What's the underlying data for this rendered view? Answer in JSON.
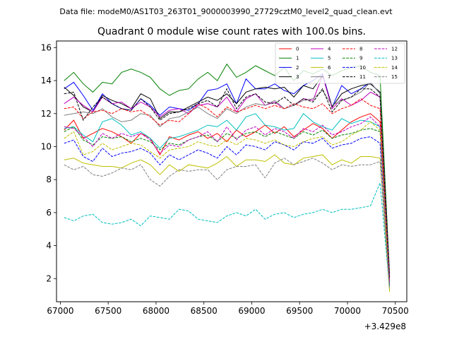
{
  "figure": {
    "suptitle": "Data file: modeM0/AS1T03_263T01_9000003990_27729cztM0_level2_quad_clean.evt"
  },
  "chart_data": {
    "type": "line",
    "title": "Quadrant 0 module wise count rates with 100.0s bins.",
    "xlabel": "",
    "ylabel": "",
    "x_offset_label": "+3.429e8",
    "xlim": [
      66960,
      70620
    ],
    "ylim": [
      0.6,
      16.4
    ],
    "xticks": [
      67000,
      67500,
      68000,
      68500,
      69000,
      69500,
      70000,
      70500
    ],
    "yticks": [
      2,
      4,
      6,
      8,
      10,
      12,
      14,
      16
    ],
    "grid": false,
    "legend": {
      "placement": "top-right",
      "columns": 4
    },
    "x": [
      67040,
      67140,
      67240,
      67340,
      67440,
      67540,
      67640,
      67740,
      67840,
      67940,
      68040,
      68140,
      68240,
      68340,
      68440,
      68540,
      68640,
      68740,
      68840,
      68940,
      69040,
      69140,
      69240,
      69340,
      69440,
      69540,
      69640,
      69740,
      69840,
      69940,
      70040,
      70140,
      70240,
      70340,
      70440
    ],
    "series": [
      {
        "name": "0",
        "color": "#ff0000",
        "dash": "solid",
        "values": [
          11.0,
          11.6,
          10.5,
          10.8,
          11.1,
          10.9,
          10.6,
          10.2,
          10.8,
          10.5,
          9.5,
          10.6,
          10.4,
          10.7,
          10.9,
          10.5,
          10.8,
          10.3,
          11.0,
          10.6,
          10.9,
          11.3,
          10.8,
          11.2,
          10.6,
          11.0,
          11.4,
          11.1,
          10.5,
          11.0,
          11.5,
          11.8,
          12.0,
          11.5,
          1.9
        ]
      },
      {
        "name": "1",
        "color": "#008000",
        "dash": "solid",
        "values": [
          14.0,
          14.5,
          13.8,
          13.3,
          13.9,
          13.8,
          14.5,
          14.7,
          14.5,
          14.2,
          13.5,
          13.1,
          13.4,
          13.5,
          14.1,
          14.5,
          14.0,
          15.0,
          14.2,
          14.5,
          14.9,
          14.6,
          14.3,
          14.8,
          14.0,
          14.6,
          14.4,
          14.7,
          14.3,
          14.6,
          14.8,
          14.9,
          14.5,
          14.3,
          2.3
        ]
      },
      {
        "name": "2",
        "color": "#0000ff",
        "dash": "solid",
        "values": [
          13.5,
          13.9,
          13.1,
          12.2,
          13.2,
          12.6,
          12.3,
          12.2,
          12.9,
          12.5,
          11.9,
          12.4,
          12.3,
          12.2,
          12.6,
          13.4,
          13.5,
          13.8,
          12.6,
          14.1,
          13.5,
          13.5,
          13.8,
          13.4,
          13.2,
          13.7,
          14.0,
          14.4,
          12.4,
          13.7,
          13.2,
          13.5,
          13.9,
          13.2,
          2.1
        ]
      },
      {
        "name": "3",
        "color": "#000000",
        "dash": "solid",
        "values": [
          13.6,
          13.1,
          12.4,
          12.1,
          13.1,
          12.8,
          12.6,
          12.3,
          13.2,
          12.9,
          11.7,
          12.1,
          12.1,
          12.4,
          12.7,
          13.0,
          12.8,
          13.2,
          12.6,
          13.3,
          13.5,
          13.6,
          13.5,
          13.6,
          13.0,
          13.7,
          13.5,
          14.3,
          12.4,
          13.2,
          13.5,
          13.7,
          13.8,
          13.3,
          2.0
        ]
      },
      {
        "name": "4",
        "color": "#bf00bf",
        "dash": "solid",
        "values": [
          12.6,
          13.0,
          12.5,
          12.1,
          13.0,
          12.6,
          12.7,
          12.3,
          12.7,
          12.4,
          11.8,
          12.2,
          12.3,
          12.0,
          12.5,
          12.6,
          12.4,
          13.0,
          12.1,
          12.9,
          13.2,
          12.5,
          12.7,
          12.3,
          12.5,
          12.9,
          12.8,
          14.3,
          12.3,
          12.9,
          12.5,
          12.8,
          13.3,
          13.0,
          2.0
        ]
      },
      {
        "name": "5",
        "color": "#00bfbf",
        "dash": "solid",
        "values": [
          11.1,
          11.2,
          10.7,
          10.3,
          11.5,
          11.7,
          11.3,
          10.7,
          10.9,
          10.5,
          9.9,
          10.5,
          10.6,
          10.8,
          11.0,
          11.3,
          11.2,
          11.6,
          11.0,
          11.8,
          12.0,
          11.3,
          11.2,
          11.0,
          11.1,
          12.0,
          11.5,
          11.2,
          11.0,
          11.7,
          11.4,
          11.6,
          11.5,
          11.2,
          1.7
        ]
      },
      {
        "name": "6",
        "color": "#bfbf00",
        "dash": "solid",
        "values": [
          9.2,
          9.3,
          9.0,
          8.9,
          8.8,
          8.8,
          8.7,
          9.0,
          9.2,
          8.9,
          8.3,
          8.9,
          8.5,
          8.9,
          8.8,
          8.7,
          9.0,
          9.4,
          8.8,
          9.2,
          9.2,
          9.1,
          9.5,
          9.0,
          8.9,
          9.3,
          9.4,
          9.5,
          8.9,
          9.2,
          9.0,
          9.4,
          9.4,
          9.3,
          1.2
        ]
      },
      {
        "name": "7",
        "color": "#808080",
        "dash": "solid",
        "values": [
          11.9,
          12.0,
          12.1,
          12.0,
          12.3,
          11.8,
          11.5,
          11.6,
          12.0,
          11.9,
          11.2,
          11.7,
          11.8,
          12.1,
          12.4,
          12.0,
          11.7,
          12.3,
          12.0,
          12.4,
          12.6,
          12.5,
          12.8,
          12.3,
          12.5,
          12.8,
          12.9,
          13.4,
          12.5,
          12.8,
          13.0,
          13.3,
          13.9,
          13.2,
          1.8
        ]
      },
      {
        "name": "8",
        "color": "#ff0000",
        "dash": "dashed",
        "values": [
          12.3,
          12.4,
          11.7,
          12.1,
          12.2,
          12.0,
          12.3,
          12.1,
          12.2,
          11.8,
          11.3,
          11.6,
          11.5,
          12.0,
          12.6,
          12.3,
          11.8,
          12.4,
          12.1,
          12.3,
          12.5,
          12.3,
          12.5,
          12.3,
          12.6,
          12.4,
          12.3,
          12.6,
          12.0,
          12.3,
          12.5,
          12.9,
          12.5,
          12.3,
          1.9
        ]
      },
      {
        "name": "9",
        "color": "#008000",
        "dash": "dashed",
        "values": [
          10.9,
          11.2,
          10.4,
          10.1,
          10.6,
          10.5,
          10.6,
          10.3,
          10.5,
          10.3,
          9.8,
          10.2,
          10.1,
          10.4,
          10.6,
          10.7,
          10.3,
          10.8,
          10.5,
          10.8,
          10.9,
          10.6,
          10.9,
          10.7,
          10.5,
          10.9,
          10.7,
          11.0,
          10.5,
          10.7,
          10.8,
          11.0,
          11.1,
          10.9,
          1.6
        ]
      },
      {
        "name": "10",
        "color": "#0000ff",
        "dash": "dashed",
        "values": [
          10.2,
          10.4,
          9.4,
          9.1,
          9.9,
          9.4,
          9.6,
          9.7,
          9.9,
          9.6,
          8.9,
          9.5,
          9.2,
          9.5,
          9.8,
          9.6,
          9.3,
          10.0,
          9.5,
          10.1,
          10.0,
          9.8,
          10.3,
          10.1,
          9.8,
          10.3,
          10.2,
          10.5,
          9.9,
          10.1,
          10.2,
          10.5,
          10.6,
          10.2,
          1.5
        ]
      },
      {
        "name": "11",
        "color": "#000000",
        "dash": "dashed",
        "values": [
          13.2,
          13.3,
          11.6,
          12.4,
          13.0,
          12.6,
          12.3,
          12.2,
          12.9,
          12.4,
          11.6,
          12.0,
          12.1,
          12.3,
          12.6,
          12.8,
          12.4,
          13.5,
          12.3,
          13.0,
          13.2,
          12.7,
          12.6,
          13.0,
          12.5,
          12.9,
          12.7,
          13.5,
          12.1,
          12.8,
          13.0,
          13.5,
          13.5,
          13.0,
          2.0
        ]
      },
      {
        "name": "12",
        "color": "#bf00bf",
        "dash": "dashed",
        "values": [
          11.2,
          11.1,
          10.6,
          10.0,
          10.8,
          10.5,
          10.8,
          10.6,
          10.8,
          10.4,
          9.6,
          10.1,
          10.0,
          10.4,
          10.6,
          10.9,
          10.3,
          11.2,
          10.4,
          11.0,
          11.2,
          10.7,
          11.1,
          10.9,
          10.5,
          11.1,
          10.9,
          11.3,
          10.7,
          10.9,
          11.2,
          11.4,
          11.8,
          11.2,
          1.7
        ]
      },
      {
        "name": "13",
        "color": "#00bfbf",
        "dash": "dashed",
        "values": [
          5.7,
          5.5,
          5.8,
          5.9,
          5.4,
          5.3,
          5.4,
          5.6,
          5.2,
          5.8,
          5.7,
          5.6,
          6.2,
          6.1,
          5.6,
          5.5,
          5.4,
          5.8,
          6.0,
          5.8,
          6.2,
          5.6,
          5.9,
          6.0,
          5.7,
          5.9,
          6.0,
          6.2,
          6.0,
          6.2,
          6.2,
          6.3,
          6.4,
          7.8,
          1.4
        ]
      },
      {
        "name": "14",
        "color": "#bfbf00",
        "dash": "dashed",
        "values": [
          10.5,
          10.9,
          9.5,
          9.7,
          10.2,
          9.8,
          10.0,
          10.2,
          10.1,
          9.7,
          9.3,
          9.8,
          9.9,
          10.0,
          10.3,
          10.1,
          10.0,
          10.4,
          10.1,
          10.5,
          10.4,
          10.2,
          10.4,
          10.1,
          10.0,
          10.3,
          10.5,
          10.6,
          10.1,
          10.3,
          10.7,
          11.0,
          11.5,
          11.0,
          1.3
        ]
      },
      {
        "name": "15",
        "color": "#808080",
        "dash": "dashed",
        "values": [
          8.9,
          8.6,
          8.8,
          8.3,
          8.2,
          8.4,
          8.7,
          8.6,
          8.9,
          8.0,
          7.6,
          8.2,
          8.6,
          8.5,
          8.6,
          8.6,
          8.0,
          8.6,
          8.8,
          8.8,
          8.9,
          8.1,
          9.0,
          9.3,
          8.9,
          9.1,
          9.3,
          9.0,
          8.6,
          8.9,
          8.8,
          8.9,
          8.9,
          9.1,
          1.4
        ]
      }
    ]
  }
}
